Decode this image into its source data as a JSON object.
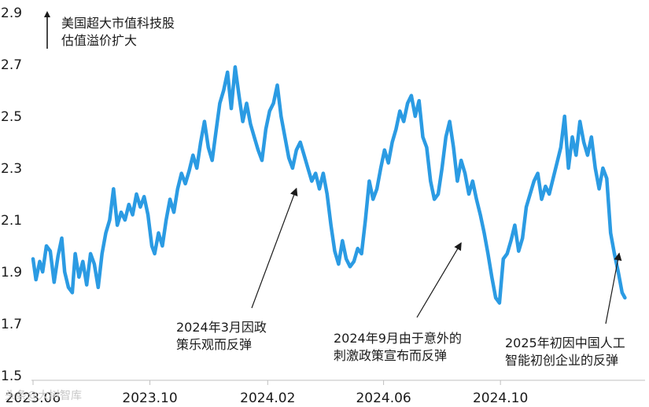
{
  "chart_data": {
    "type": "line",
    "title": "",
    "xlabel": "",
    "ylabel": "美国超大市值科技股估值溢价扩大",
    "ylabel_lines": [
      "美国超大市值科技股",
      "估值溢价扩大"
    ],
    "ylim": [
      1.5,
      2.9
    ],
    "yticks": [
      "2.9",
      "2.7",
      "2.5",
      "2.3",
      "2.1",
      "1.9",
      "1.7",
      "1.5"
    ],
    "xlim": [
      "2023-06",
      "2025-03"
    ],
    "xticks": [
      {
        "label": "2023.06",
        "x": "2023-06"
      },
      {
        "label": "2023.10",
        "x": "2023-10"
      },
      {
        "label": "2024.02",
        "x": "2024-02"
      },
      {
        "label": "2024.06",
        "x": "2024-06"
      },
      {
        "label": "2024.10",
        "x": "2024-10"
      }
    ],
    "grid": false,
    "series": [
      {
        "color": "#2b9be3",
        "points": [
          [
            "2023-06-01",
            1.95
          ],
          [
            "2023-06-04",
            1.87
          ],
          [
            "2023-06-08",
            1.94
          ],
          [
            "2023-06-11",
            1.9
          ],
          [
            "2023-06-15",
            2.0
          ],
          [
            "2023-06-19",
            1.98
          ],
          [
            "2023-06-23",
            1.86
          ],
          [
            "2023-06-27",
            1.96
          ],
          [
            "2023-07-01",
            2.03
          ],
          [
            "2023-07-04",
            1.9
          ],
          [
            "2023-07-08",
            1.84
          ],
          [
            "2023-07-12",
            1.82
          ],
          [
            "2023-07-15",
            1.97
          ],
          [
            "2023-07-19",
            1.88
          ],
          [
            "2023-07-23",
            1.94
          ],
          [
            "2023-07-27",
            1.85
          ],
          [
            "2023-07-31",
            1.97
          ],
          [
            "2023-08-04",
            1.93
          ],
          [
            "2023-08-08",
            1.84
          ],
          [
            "2023-08-12",
            1.97
          ],
          [
            "2023-08-16",
            2.05
          ],
          [
            "2023-08-20",
            2.1
          ],
          [
            "2023-08-24",
            2.22
          ],
          [
            "2023-08-28",
            2.08
          ],
          [
            "2023-09-01",
            2.13
          ],
          [
            "2023-09-05",
            2.1
          ],
          [
            "2023-09-09",
            2.16
          ],
          [
            "2023-09-13",
            2.12
          ],
          [
            "2023-09-17",
            2.2
          ],
          [
            "2023-09-21",
            2.15
          ],
          [
            "2023-09-25",
            2.19
          ],
          [
            "2023-09-29",
            2.12
          ],
          [
            "2023-10-03",
            2.0
          ],
          [
            "2023-10-06",
            1.97
          ],
          [
            "2023-10-10",
            2.05
          ],
          [
            "2023-10-14",
            2.0
          ],
          [
            "2023-10-18",
            2.1
          ],
          [
            "2023-10-22",
            2.18
          ],
          [
            "2023-10-26",
            2.13
          ],
          [
            "2023-10-30",
            2.22
          ],
          [
            "2023-11-03",
            2.28
          ],
          [
            "2023-11-07",
            2.24
          ],
          [
            "2023-11-11",
            2.29
          ],
          [
            "2023-11-15",
            2.35
          ],
          [
            "2023-11-19",
            2.3
          ],
          [
            "2023-11-23",
            2.4
          ],
          [
            "2023-11-27",
            2.48
          ],
          [
            "2023-12-01",
            2.38
          ],
          [
            "2023-12-05",
            2.33
          ],
          [
            "2023-12-09",
            2.44
          ],
          [
            "2023-12-13",
            2.55
          ],
          [
            "2023-12-17",
            2.6
          ],
          [
            "2023-12-21",
            2.67
          ],
          [
            "2023-12-25",
            2.53
          ],
          [
            "2023-12-29",
            2.69
          ],
          [
            "2024-01-02",
            2.58
          ],
          [
            "2024-01-06",
            2.48
          ],
          [
            "2024-01-10",
            2.55
          ],
          [
            "2024-01-14",
            2.47
          ],
          [
            "2024-01-18",
            2.42
          ],
          [
            "2024-01-22",
            2.37
          ],
          [
            "2024-01-26",
            2.33
          ],
          [
            "2024-01-30",
            2.45
          ],
          [
            "2024-02-03",
            2.52
          ],
          [
            "2024-02-07",
            2.55
          ],
          [
            "2024-02-11",
            2.62
          ],
          [
            "2024-02-15",
            2.5
          ],
          [
            "2024-02-19",
            2.42
          ],
          [
            "2024-02-23",
            2.34
          ],
          [
            "2024-02-27",
            2.3
          ],
          [
            "2024-03-02",
            2.37
          ],
          [
            "2024-03-06",
            2.4
          ],
          [
            "2024-03-10",
            2.35
          ],
          [
            "2024-03-14",
            2.3
          ],
          [
            "2024-03-18",
            2.25
          ],
          [
            "2024-03-22",
            2.28
          ],
          [
            "2024-03-26",
            2.22
          ],
          [
            "2024-03-30",
            2.28
          ],
          [
            "2024-04-03",
            2.2
          ],
          [
            "2024-04-07",
            2.08
          ],
          [
            "2024-04-11",
            1.98
          ],
          [
            "2024-04-15",
            1.93
          ],
          [
            "2024-04-19",
            2.02
          ],
          [
            "2024-04-23",
            1.95
          ],
          [
            "2024-04-27",
            1.92
          ],
          [
            "2024-05-01",
            1.94
          ],
          [
            "2024-05-05",
            1.99
          ],
          [
            "2024-05-09",
            1.97
          ],
          [
            "2024-05-13",
            2.1
          ],
          [
            "2024-05-17",
            2.25
          ],
          [
            "2024-05-21",
            2.18
          ],
          [
            "2024-05-25",
            2.22
          ],
          [
            "2024-05-29",
            2.3
          ],
          [
            "2024-06-02",
            2.37
          ],
          [
            "2024-06-06",
            2.32
          ],
          [
            "2024-06-10",
            2.4
          ],
          [
            "2024-06-14",
            2.45
          ],
          [
            "2024-06-18",
            2.52
          ],
          [
            "2024-06-22",
            2.48
          ],
          [
            "2024-06-26",
            2.55
          ],
          [
            "2024-06-30",
            2.58
          ],
          [
            "2024-07-04",
            2.5
          ],
          [
            "2024-07-08",
            2.56
          ],
          [
            "2024-07-12",
            2.42
          ],
          [
            "2024-07-16",
            2.38
          ],
          [
            "2024-07-20",
            2.25
          ],
          [
            "2024-07-24",
            2.18
          ],
          [
            "2024-07-28",
            2.2
          ],
          [
            "2024-08-01",
            2.3
          ],
          [
            "2024-08-05",
            2.42
          ],
          [
            "2024-08-09",
            2.48
          ],
          [
            "2024-08-13",
            2.38
          ],
          [
            "2024-08-17",
            2.25
          ],
          [
            "2024-08-21",
            2.33
          ],
          [
            "2024-08-25",
            2.28
          ],
          [
            "2024-08-29",
            2.2
          ],
          [
            "2024-09-02",
            2.25
          ],
          [
            "2024-09-06",
            2.18
          ],
          [
            "2024-09-10",
            2.12
          ],
          [
            "2024-09-14",
            2.05
          ],
          [
            "2024-09-18",
            1.97
          ],
          [
            "2024-09-22",
            1.88
          ],
          [
            "2024-09-26",
            1.8
          ],
          [
            "2024-09-30",
            1.78
          ],
          [
            "2024-10-04",
            1.95
          ],
          [
            "2024-10-08",
            1.97
          ],
          [
            "2024-10-12",
            2.02
          ],
          [
            "2024-10-16",
            2.08
          ],
          [
            "2024-10-20",
            1.98
          ],
          [
            "2024-10-24",
            2.03
          ],
          [
            "2024-10-28",
            2.15
          ],
          [
            "2024-11-01",
            2.2
          ],
          [
            "2024-11-05",
            2.25
          ],
          [
            "2024-11-09",
            2.28
          ],
          [
            "2024-11-13",
            2.18
          ],
          [
            "2024-11-17",
            2.23
          ],
          [
            "2024-11-21",
            2.2
          ],
          [
            "2024-11-25",
            2.26
          ],
          [
            "2024-11-29",
            2.32
          ],
          [
            "2024-12-03",
            2.38
          ],
          [
            "2024-12-07",
            2.5
          ],
          [
            "2024-12-11",
            2.3
          ],
          [
            "2024-12-15",
            2.42
          ],
          [
            "2024-12-19",
            2.35
          ],
          [
            "2024-12-23",
            2.48
          ],
          [
            "2024-12-27",
            2.4
          ],
          [
            "2024-12-31",
            2.35
          ],
          [
            "2025-01-04",
            2.42
          ],
          [
            "2025-01-08",
            2.3
          ],
          [
            "2025-01-12",
            2.22
          ],
          [
            "2025-01-16",
            2.3
          ],
          [
            "2025-01-20",
            2.26
          ],
          [
            "2025-01-24",
            2.05
          ],
          [
            "2025-01-28",
            1.97
          ],
          [
            "2025-02-01",
            1.9
          ],
          [
            "2025-02-05",
            1.82
          ],
          [
            "2025-02-08",
            1.8
          ]
        ]
      }
    ],
    "annotations": [
      {
        "lines": [
          "2024年3月因政",
          "策乐观而反弹"
        ],
        "target": [
          "2024-03-02",
          2.24
        ]
      },
      {
        "lines": [
          "2024年9月由于意外的",
          "刺激政策宣布而反弹"
        ],
        "target": [
          "2024-08-21",
          2.03
        ]
      },
      {
        "lines": [
          "2025年初因中国人工",
          "智能初创企业的反弹"
        ],
        "target": [
          "2025-02-02",
          1.99
        ]
      }
    ],
    "watermark": "头条@大树智库"
  }
}
